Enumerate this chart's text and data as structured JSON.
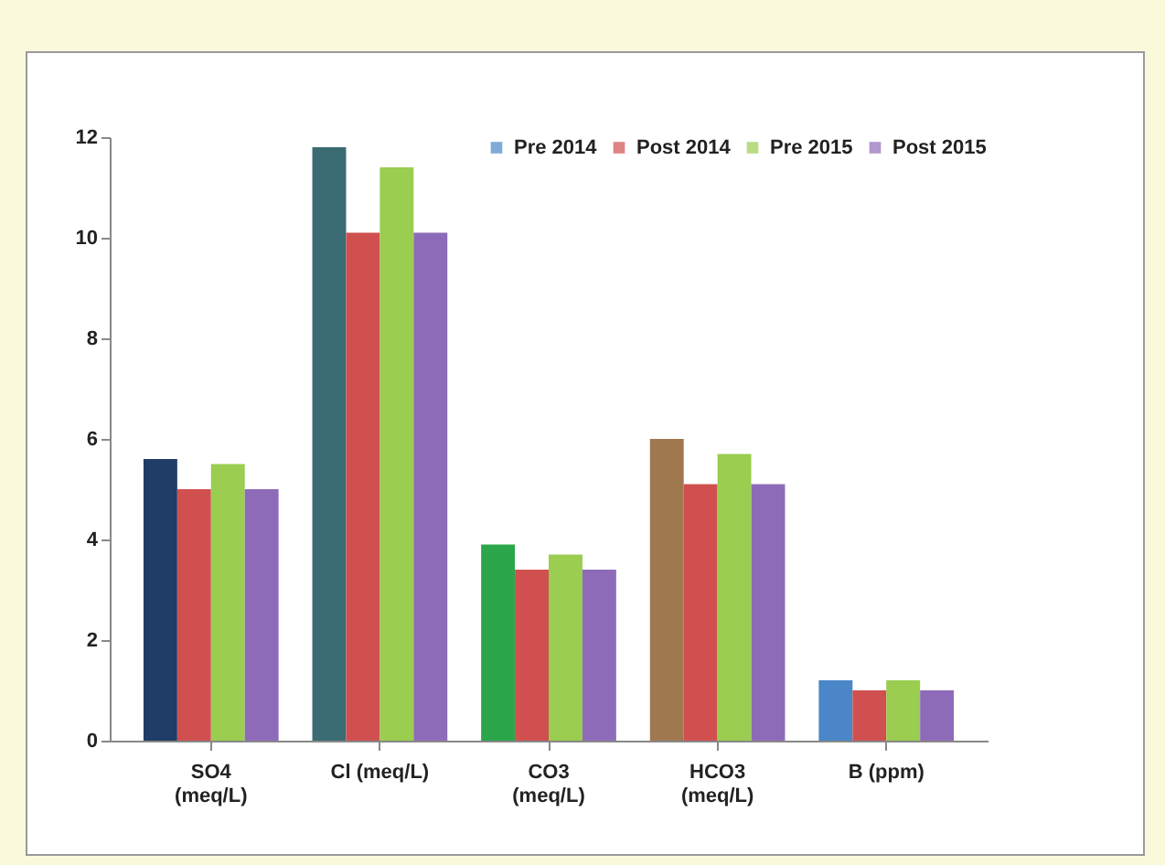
{
  "chart_data": {
    "type": "bar",
    "categories": [
      "SO4 (meq/L)",
      "Cl (meq/L)",
      "CO3 (meq/L)",
      "HCO3 (meq/L)",
      "B (ppm)"
    ],
    "series": [
      {
        "name": "Pre 2014",
        "color": "#4a86c8",
        "colors": [
          "#1f3d66",
          "#3b6b73",
          "#2ca64a",
          "#a07850",
          "#4a86c8"
        ],
        "values": [
          5.6,
          11.8,
          3.9,
          6.0,
          1.2
        ]
      },
      {
        "name": "Post 2014",
        "color": "#d05050",
        "values": [
          5.0,
          10.1,
          3.4,
          5.1,
          1.0
        ]
      },
      {
        "name": "Pre 2015",
        "color": "#9acd50",
        "values": [
          5.5,
          11.4,
          3.7,
          5.7,
          1.2
        ]
      },
      {
        "name": "Post 2015",
        "color": "#8e6bb8",
        "values": [
          5.0,
          10.1,
          3.4,
          5.1,
          1.0
        ]
      }
    ],
    "ylim": [
      0,
      12
    ],
    "yticks": [
      0,
      2,
      4,
      6,
      8,
      10,
      12
    ],
    "grid": false,
    "legend": "top right"
  }
}
